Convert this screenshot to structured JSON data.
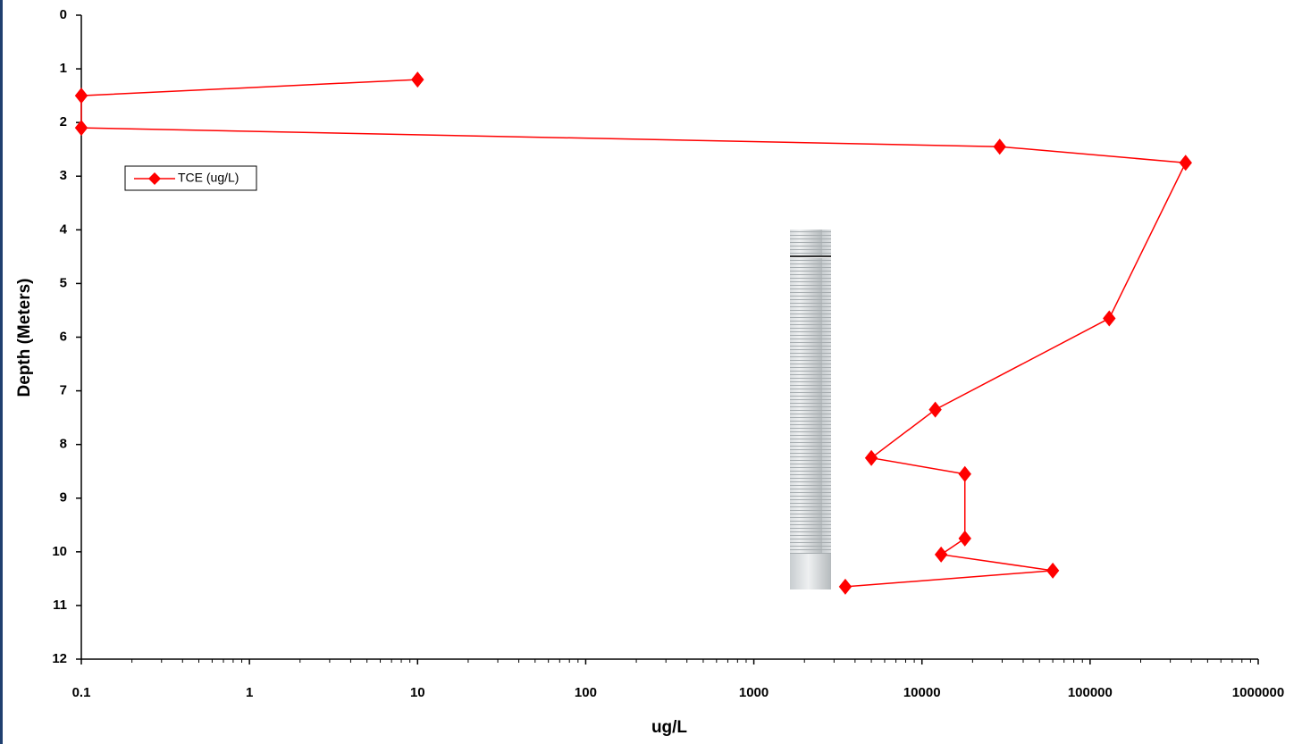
{
  "chart_data": {
    "type": "line",
    "x_label": "ug/L",
    "y_label": "Depth (Meters)",
    "xscale": "log",
    "xlim": [
      0.1,
      1000000
    ],
    "xticks": [
      0.1,
      1,
      10,
      100,
      1000,
      10000,
      100000,
      1000000
    ],
    "ylim": [
      12,
      0
    ],
    "yticks": [
      0,
      1,
      2,
      3,
      4,
      5,
      6,
      7,
      8,
      9,
      10,
      11,
      12
    ],
    "legend": "upper-left",
    "series": [
      {
        "name": "TCE (ug/L)",
        "color": "#ff0000",
        "x": [
          10,
          0.1,
          0.1,
          29000,
          370000,
          130000,
          12000,
          5000,
          18000,
          18000,
          13000,
          60000,
          3500
        ],
        "values": [
          1.2,
          1.5,
          2.1,
          2.45,
          2.75,
          5.65,
          7.35,
          8.25,
          8.55,
          9.75,
          10.05,
          10.35,
          10.65
        ]
      }
    ]
  }
}
